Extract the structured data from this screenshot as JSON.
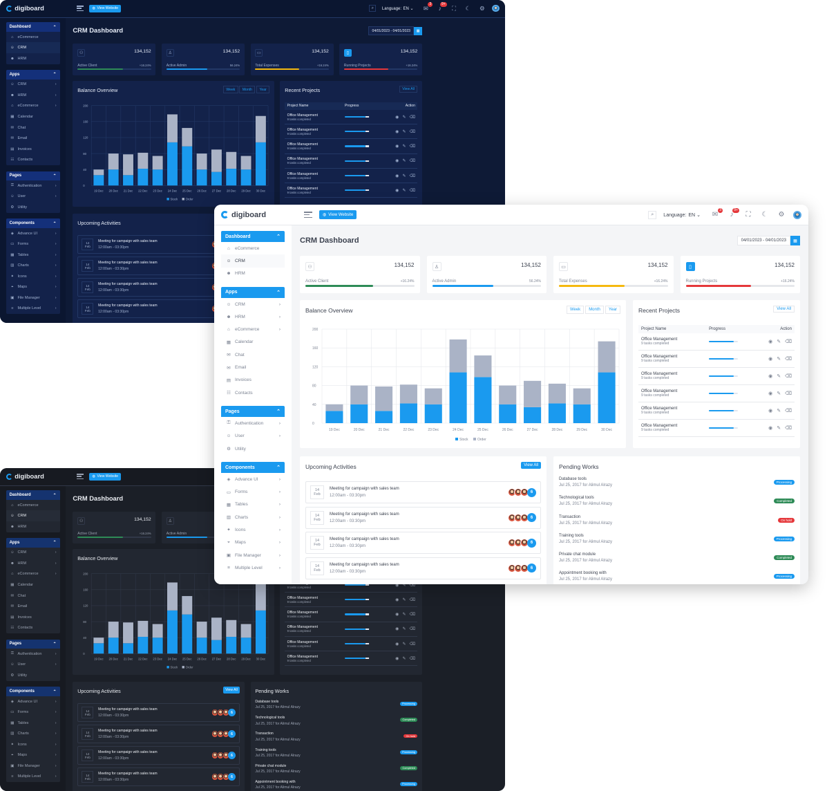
{
  "app": {
    "logo": "digiboard",
    "view_website": "View Website",
    "language_label": "Language:",
    "language_value": "EN",
    "message_badge": "3",
    "notif_badge": "9+",
    "page_title": "CRM Dashboard",
    "date_range": "04/01/2023 - 04/01/2023"
  },
  "sidebar": {
    "dashboard": {
      "title": "Dashboard",
      "items": [
        "eCommerce",
        "CRM",
        "HRM"
      ]
    },
    "apps": {
      "title": "Apps",
      "items": [
        "CRM",
        "HRM",
        "eCommerce",
        "Calendar",
        "Chat",
        "Email",
        "Invoices",
        "Contacts"
      ]
    },
    "pages": {
      "title": "Pages",
      "items": [
        "Authentication",
        "User",
        "Utility"
      ]
    },
    "components": {
      "title": "Components",
      "items": [
        "Advance UI",
        "Forms",
        "Tables",
        "Charts",
        "Icons",
        "Maps",
        "File Manager",
        "Multiple Level"
      ]
    }
  },
  "stats": [
    {
      "label": "Active Client",
      "value": "134,152",
      "pct": "+16.24%",
      "fill": 0.62,
      "color": "#2e8b57"
    },
    {
      "label": "Active Admin",
      "value": "134,152",
      "pct": "56.24%",
      "fill": 0.56,
      "color": "#1a9aef"
    },
    {
      "label": "Total Expenses",
      "value": "134,152",
      "pct": "+16.24%",
      "fill": 0.6,
      "color": "#f5b90f"
    },
    {
      "label": "Running Projects",
      "value": "134,152",
      "pct": "+16.24%",
      "fill": 0.6,
      "color": "#e5383b"
    }
  ],
  "balance": {
    "title": "Balance Overview",
    "tabs": [
      "Week",
      "Month",
      "Year"
    ]
  },
  "chart_data": {
    "type": "bar",
    "stacked": true,
    "categories": [
      "19 Dec",
      "20 Dec",
      "21 Dec",
      "22 Dec",
      "23 Dec",
      "24 Dec",
      "25 Dec",
      "26 Dec",
      "27 Dec",
      "28 Dec",
      "29 Dec",
      "30 Dec"
    ],
    "series": [
      {
        "name": "Stock",
        "color": "#1a9aef",
        "values": [
          26,
          40,
          26,
          42,
          40,
          108,
          98,
          40,
          34,
          42,
          40,
          108
        ]
      },
      {
        "name": "Order",
        "color": "#aab3c6",
        "values": [
          14,
          40,
          52,
          40,
          34,
          70,
          46,
          40,
          56,
          42,
          34,
          66
        ]
      }
    ],
    "y_ticks": [
      0,
      40,
      80,
      120,
      160,
      200
    ],
    "ylim": [
      0,
      200
    ],
    "grid": true,
    "legend": "bottom"
  },
  "recent": {
    "title": "Recent Projects",
    "view_all": "View All",
    "headers": [
      "Project Name",
      "Progress",
      "Action"
    ],
    "rows": [
      {
        "name": "Office Management",
        "sub": "9 tasks completed",
        "progress": 0.85
      },
      {
        "name": "Office Management",
        "sub": "9 tasks completed",
        "progress": 0.85
      },
      {
        "name": "Office Management",
        "sub": "9 tasks completed",
        "progress": 0.85
      },
      {
        "name": "Office Management",
        "sub": "9 tasks completed",
        "progress": 0.85
      },
      {
        "name": "Office Management",
        "sub": "9 tasks completed",
        "progress": 0.85
      },
      {
        "name": "Office Management",
        "sub": "9 tasks completed",
        "progress": 0.85
      }
    ]
  },
  "upcoming": {
    "title": "Upcoming Activities",
    "view_all": "View All",
    "rows": [
      {
        "day": "14",
        "month": "Feb",
        "title": "Meeting for campaign with sales team",
        "time": "12:00am - 03:30pm",
        "count": "6"
      },
      {
        "day": "14",
        "month": "Feb",
        "title": "Meeting for campaign with sales team",
        "time": "12:00am - 03:30pm",
        "count": "6"
      },
      {
        "day": "14",
        "month": "Feb",
        "title": "Meeting for campaign with sales team",
        "time": "12:00am - 03:30pm",
        "count": "6"
      },
      {
        "day": "14",
        "month": "Feb",
        "title": "Meeting for campaign with sales team",
        "time": "12:00am - 03:30pm",
        "count": "6"
      }
    ]
  },
  "pending": {
    "title": "Pending Works",
    "rows": [
      {
        "title": "Database tools",
        "date": "Jul 25, 2017 for Alimul Alrazy",
        "status": "Processing",
        "color": "#1a9aef"
      },
      {
        "title": "Technological tools",
        "date": "Jul 25, 2017 for Alimul Alrazy",
        "status": "Completed",
        "color": "#2e8b57"
      },
      {
        "title": "Transaction",
        "date": "Jul 25, 2017 for Alimul Alrazy",
        "status": "On hold",
        "color": "#e5383b"
      },
      {
        "title": "Training tools",
        "date": "Jul 25, 2017 for Alimul Alrazy",
        "status": "Processing",
        "color": "#1a9aef"
      },
      {
        "title": "Private chat module",
        "date": "Jul 25, 2017 for Alimul Alrazy",
        "status": "Completed",
        "color": "#2e8b57"
      },
      {
        "title": "Appointment booking with",
        "date": "Jul 25, 2017 for Alimul Alrazy",
        "status": "Processing",
        "color": "#1a9aef"
      }
    ]
  }
}
